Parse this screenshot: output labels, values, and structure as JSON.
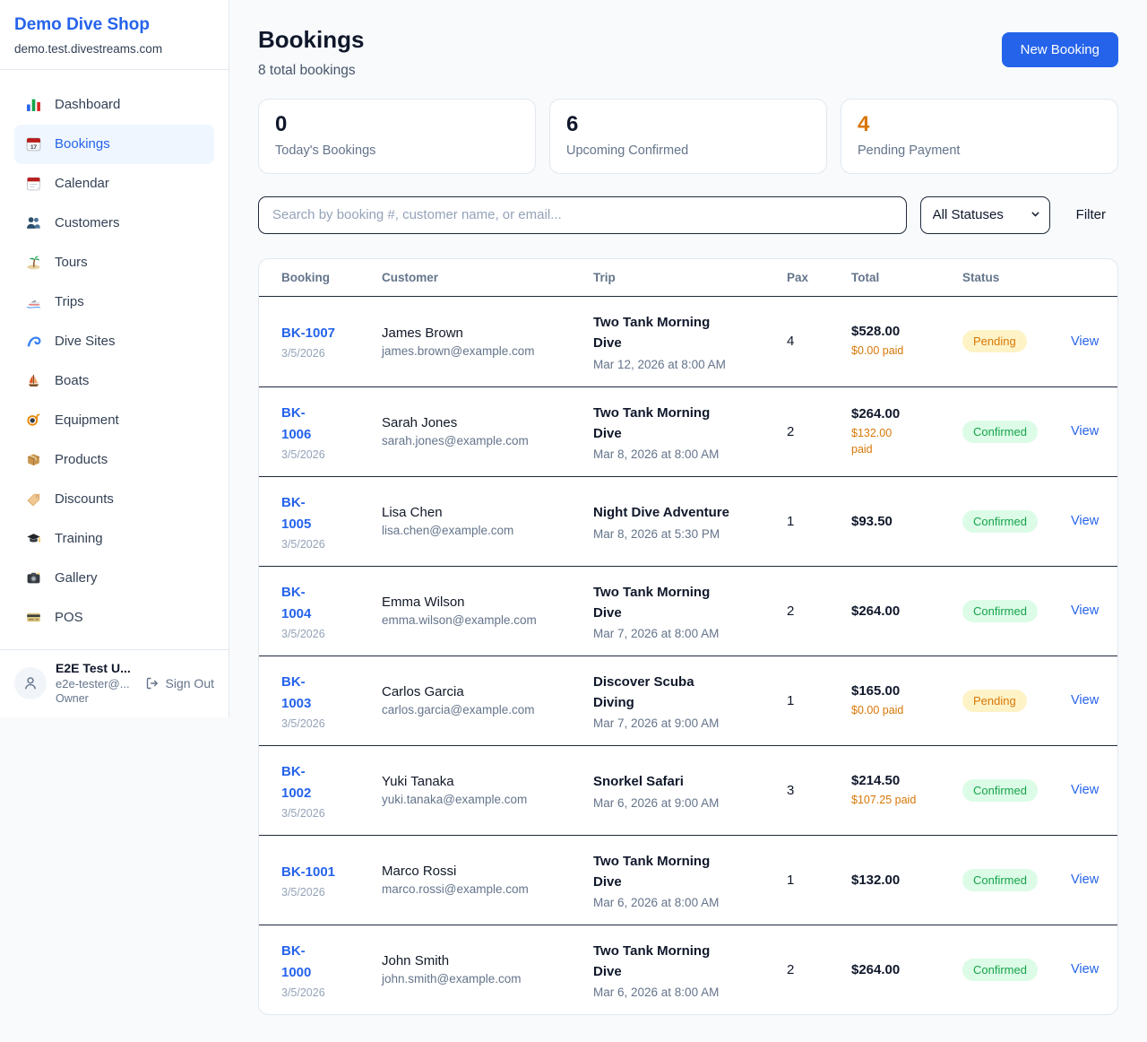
{
  "app": {
    "name": "Demo Dive Shop",
    "domain": "demo.test.divestreams.com"
  },
  "sidebar": {
    "items": [
      {
        "icon": "dashboard-icon",
        "label": "Dashboard",
        "active": false
      },
      {
        "icon": "bookings-icon",
        "label": "Bookings",
        "active": true
      },
      {
        "icon": "calendar-icon",
        "label": "Calendar",
        "active": false
      },
      {
        "icon": "customers-icon",
        "label": "Customers",
        "active": false
      },
      {
        "icon": "tours-icon",
        "label": "Tours",
        "active": false
      },
      {
        "icon": "trips-icon",
        "label": "Trips",
        "active": false
      },
      {
        "icon": "dive-sites-icon",
        "label": "Dive Sites",
        "active": false
      },
      {
        "icon": "boats-icon",
        "label": "Boats",
        "active": false
      },
      {
        "icon": "equipment-icon",
        "label": "Equipment",
        "active": false
      },
      {
        "icon": "products-icon",
        "label": "Products",
        "active": false
      },
      {
        "icon": "discounts-icon",
        "label": "Discounts",
        "active": false
      },
      {
        "icon": "training-icon",
        "label": "Training",
        "active": false
      },
      {
        "icon": "gallery-icon",
        "label": "Gallery",
        "active": false
      },
      {
        "icon": "pos-icon",
        "label": "POS",
        "active": false
      }
    ],
    "user": {
      "name": "E2E Test U...",
      "email": "e2e-tester@...",
      "role": "Owner",
      "sign_out_label": "Sign Out"
    }
  },
  "header": {
    "title": "Bookings",
    "subtitle": "8 total bookings",
    "new_booking_label": "New Booking"
  },
  "stats": [
    {
      "value": "0",
      "label": "Today's Bookings"
    },
    {
      "value": "6",
      "label": "Upcoming Confirmed"
    },
    {
      "value": "4",
      "label": "Pending Payment"
    }
  ],
  "filters": {
    "search_placeholder": "Search by booking #, customer name, or email...",
    "status_select": "All Statuses",
    "filter_label": "Filter"
  },
  "table": {
    "columns": [
      "Booking",
      "Customer",
      "Trip",
      "Pax",
      "Total",
      "Status"
    ],
    "view_label": "View",
    "rows": [
      {
        "id": "BK-1007",
        "date": "3/5/2026",
        "customer": "James Brown",
        "email": "james.brown@example.com",
        "trip": "Two Tank Morning\nDive",
        "trip_date": "Mar 12, 2026 at 8:00 AM",
        "pax": "4",
        "total": "$528.00",
        "paid": "$0.00 paid",
        "status": "Pending"
      },
      {
        "id": "BK-\n1006",
        "date": "3/5/2026",
        "customer": "Sarah Jones",
        "email": "sarah.jones@example.com",
        "trip": "Two Tank Morning\nDive",
        "trip_date": "Mar 8, 2026 at 8:00 AM",
        "pax": "2",
        "total": "$264.00",
        "paid": "$132.00\npaid",
        "status": "Confirmed"
      },
      {
        "id": "BK-\n1005",
        "date": "3/5/2026",
        "customer": "Lisa Chen",
        "email": "lisa.chen@example.com",
        "trip": "Night Dive Adventure",
        "trip_date": "Mar 8, 2026 at 5:30 PM",
        "pax": "1",
        "total": "$93.50",
        "paid": "",
        "status": "Confirmed"
      },
      {
        "id": "BK-\n1004",
        "date": "3/5/2026",
        "customer": "Emma Wilson",
        "email": "emma.wilson@example.com",
        "trip": "Two Tank Morning\nDive",
        "trip_date": "Mar 7, 2026 at 8:00 AM",
        "pax": "2",
        "total": "$264.00",
        "paid": "",
        "status": "Confirmed"
      },
      {
        "id": "BK-\n1003",
        "date": "3/5/2026",
        "customer": "Carlos Garcia",
        "email": "carlos.garcia@example.com",
        "trip": "Discover Scuba\nDiving",
        "trip_date": "Mar 7, 2026 at 9:00 AM",
        "pax": "1",
        "total": "$165.00",
        "paid": "$0.00 paid",
        "status": "Pending"
      },
      {
        "id": "BK-\n1002",
        "date": "3/5/2026",
        "customer": "Yuki Tanaka",
        "email": "yuki.tanaka@example.com",
        "trip": "Snorkel Safari",
        "trip_date": "Mar 6, 2026 at 9:00 AM",
        "pax": "3",
        "total": "$214.50",
        "paid": "$107.25 paid",
        "status": "Confirmed"
      },
      {
        "id": "BK-1001",
        "date": "3/5/2026",
        "customer": "Marco Rossi",
        "email": "marco.rossi@example.com",
        "trip": "Two Tank Morning\nDive",
        "trip_date": "Mar 6, 2026 at 8:00 AM",
        "pax": "1",
        "total": "$132.00",
        "paid": "",
        "status": "Confirmed"
      },
      {
        "id": "BK-\n1000",
        "date": "3/5/2026",
        "customer": "John Smith",
        "email": "john.smith@example.com",
        "trip": "Two Tank Morning\nDive",
        "trip_date": "Mar 6, 2026 at 8:00 AM",
        "pax": "2",
        "total": "$264.00",
        "paid": "",
        "status": "Confirmed"
      }
    ]
  },
  "colors": {
    "accent_blue": "#2563eb",
    "pending_text": "#d97706",
    "pending_bg": "#fef3c7",
    "confirmed_text": "#16a34a",
    "confirmed_bg": "#dcfce7",
    "page_bg": "#f8fafc"
  }
}
